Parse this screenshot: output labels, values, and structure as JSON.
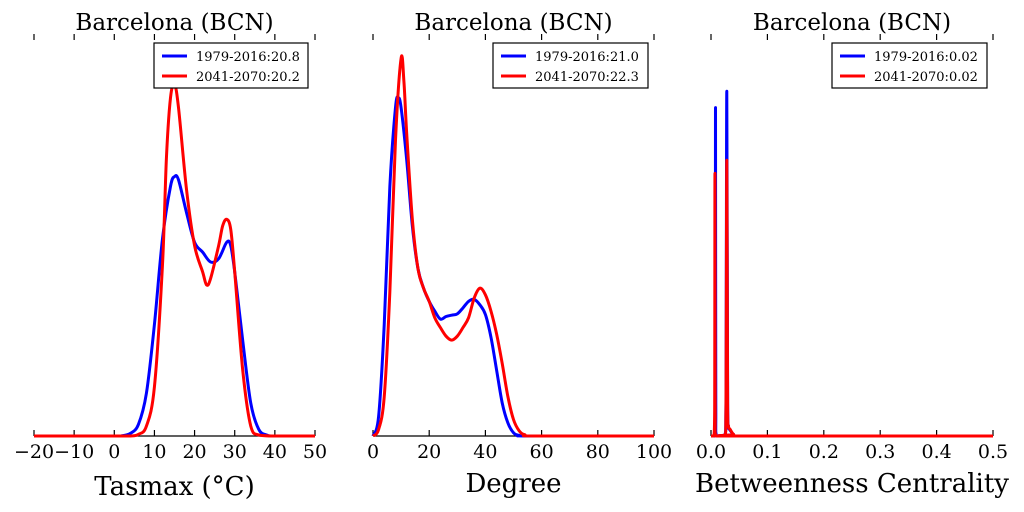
{
  "chart_data": [
    {
      "type": "line",
      "title": "Barcelona (BCN)",
      "xlabel": "Tasmax ($^\\circ$C)",
      "xlabel_display": "Tasmax (°C)",
      "ylabel": "",
      "xlim": [
        -20,
        50
      ],
      "ylim": [
        0,
        0.12
      ],
      "x_ticks": [
        -20,
        -10,
        0,
        10,
        20,
        30,
        40,
        50
      ],
      "x_tick_labels": [
        "−20",
        "−10",
        "0",
        "10",
        "20",
        "30",
        "40",
        "50"
      ],
      "legend_position": "top-right",
      "series": [
        {
          "name": "1979-2016:20.8",
          "color": "#0000ff",
          "x": [
            -20,
            0,
            2,
            4,
            6,
            8,
            10,
            12,
            14,
            15,
            16,
            18,
            20,
            22,
            24,
            26,
            28,
            29,
            30,
            32,
            34,
            36,
            38,
            40,
            50
          ],
          "values": [
            0,
            0,
            0.0001,
            0.0008,
            0.0035,
            0.013,
            0.034,
            0.06,
            0.076,
            0.079,
            0.078,
            0.068,
            0.059,
            0.056,
            0.053,
            0.054,
            0.059,
            0.058,
            0.05,
            0.029,
            0.01,
            0.002,
            0.0003,
            0,
            0
          ]
        },
        {
          "name": "2041-2070:20.2",
          "color": "#ff0000",
          "x": [
            -20,
            0,
            4,
            6,
            8,
            10,
            12,
            13,
            14,
            15,
            16,
            18,
            20,
            22,
            23,
            24,
            26,
            27,
            28,
            29,
            30,
            32,
            34,
            36,
            40,
            50
          ],
          "values": [
            0,
            0,
            0,
            0.0005,
            0.003,
            0.015,
            0.052,
            0.085,
            0.103,
            0.107,
            0.1,
            0.075,
            0.058,
            0.05,
            0.046,
            0.048,
            0.058,
            0.064,
            0.066,
            0.063,
            0.05,
            0.02,
            0.003,
            0.0003,
            0,
            0
          ]
        }
      ]
    },
    {
      "type": "line",
      "title": "Barcelona (BCN)",
      "xlabel": "Degree",
      "xlabel_display": "Degree",
      "ylabel": "",
      "xlim": [
        0,
        100
      ],
      "ylim": [
        0,
        0.06
      ],
      "x_ticks": [
        0,
        20,
        40,
        60,
        80,
        100
      ],
      "x_tick_labels": [
        "0",
        "20",
        "40",
        "60",
        "80",
        "100"
      ],
      "legend_position": "top-right",
      "series": [
        {
          "name": "1979-2016:21.0",
          "color": "#0000ff",
          "x": [
            0,
            2,
            4,
            6,
            8,
            9,
            10,
            12,
            14,
            16,
            18,
            20,
            22,
            24,
            26,
            28,
            30,
            32,
            34,
            36,
            38,
            40,
            42,
            44,
            46,
            48,
            50,
            52,
            56,
            100
          ],
          "values": [
            0,
            0.003,
            0.017,
            0.038,
            0.05,
            0.0515,
            0.05,
            0.042,
            0.032,
            0.0255,
            0.0225,
            0.0205,
            0.019,
            0.0178,
            0.0182,
            0.0184,
            0.0186,
            0.0195,
            0.0205,
            0.0208,
            0.02,
            0.0185,
            0.015,
            0.01,
            0.005,
            0.002,
            0.0005,
            0.0001,
            0,
            0
          ]
        },
        {
          "name": "2041-2070:22.3",
          "color": "#ff0000",
          "x": [
            0,
            2,
            4,
            6,
            8,
            10,
            11,
            12,
            14,
            16,
            18,
            20,
            22,
            24,
            26,
            28,
            30,
            32,
            34,
            36,
            38,
            40,
            42,
            44,
            46,
            48,
            50,
            52,
            54,
            58,
            100
          ],
          "values": [
            0,
            0.001,
            0.006,
            0.022,
            0.045,
            0.0575,
            0.054,
            0.046,
            0.033,
            0.0255,
            0.0225,
            0.0205,
            0.018,
            0.0165,
            0.0152,
            0.0146,
            0.0152,
            0.0165,
            0.018,
            0.021,
            0.0225,
            0.0215,
            0.019,
            0.0155,
            0.011,
            0.006,
            0.0025,
            0.0008,
            0.0002,
            0,
            0
          ]
        }
      ]
    },
    {
      "type": "line",
      "title": "Barcelona (BCN)",
      "xlabel": "Betweenness Centrality",
      "xlabel_display": "Betweenness Centrality",
      "ylabel": "",
      "xlim": [
        0,
        0.5
      ],
      "ylim": [
        0,
        120
      ],
      "x_ticks": [
        0,
        0.1,
        0.2,
        0.3,
        0.4,
        0.5
      ],
      "x_tick_labels": [
        "0.0",
        "0.1",
        "0.2",
        "0.3",
        "0.4",
        "0.5"
      ],
      "legend_position": "top-right",
      "series": [
        {
          "name": "1979-2016:0.02",
          "color": "#0000ff",
          "x": [
            0,
            0.006,
            0.0075,
            0.008,
            0.0085,
            0.01,
            0.024,
            0.0265,
            0.028,
            0.0295,
            0.031,
            0.033,
            0.04,
            0.05,
            0.5
          ],
          "values": [
            0,
            0,
            10,
            100,
            10,
            0,
            0,
            10,
            105,
            10,
            3,
            2,
            0.5,
            0,
            0
          ]
        },
        {
          "name": "2041-2070:0.02",
          "color": "#ff0000",
          "x": [
            0,
            0.005,
            0.0065,
            0.007,
            0.0075,
            0.009,
            0.024,
            0.0265,
            0.028,
            0.0295,
            0.031,
            0.034,
            0.04,
            0.05,
            0.5
          ],
          "values": [
            0,
            0,
            8,
            80,
            8,
            0,
            0,
            8,
            84,
            8,
            3,
            2,
            0.5,
            0,
            0
          ]
        }
      ]
    }
  ]
}
